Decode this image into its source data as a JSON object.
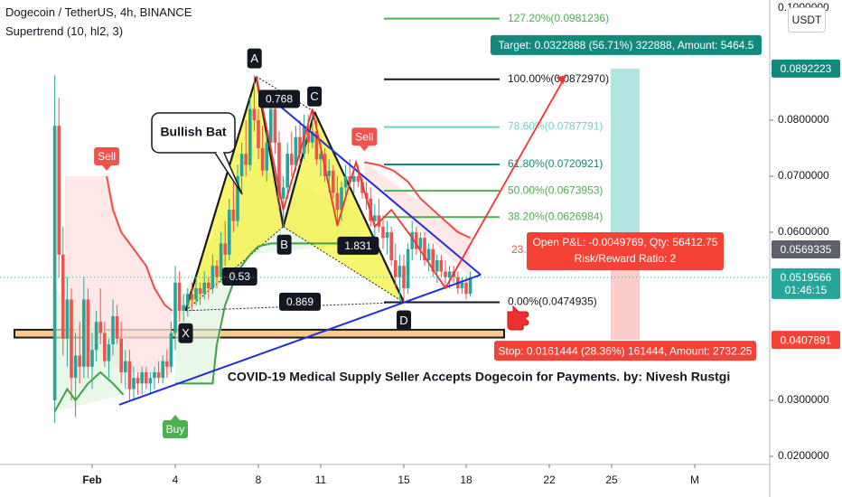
{
  "header": {
    "symbol_line": "Dogecoin / TetherUS, 4h, BINANCE",
    "indicator_line": "Supertrend (10, hl2, 3)"
  },
  "currency_button": "USDT",
  "colors": {
    "up": "#26a69a",
    "down": "#ef5350",
    "pattern_fill": "#f5f23d",
    "trendline": "#1f2fdc",
    "pattern_line": "#1a1a1a",
    "fib_green": "#4caf50",
    "fib_teal": "#6dd3c7",
    "target_bg": "#13897e",
    "stop_bg": "#f44336"
  },
  "chart_data": {
    "type": "candlestick",
    "title": "Dogecoin / TetherUS, 4h, BINANCE",
    "x_ticks": [
      "Feb",
      "4",
      "8",
      "11",
      "15",
      "18",
      "22",
      "25",
      "M"
    ],
    "y_ticks": [
      "0.0800000",
      "0.0700000",
      "0.0600000",
      "0.0300000",
      "0.0200000"
    ],
    "y_top_tick_partial": "0.1000000",
    "ylim": [
      0.019,
      0.101
    ],
    "price_tags": [
      {
        "text": "0.0892223",
        "value": 0.0892223,
        "kind": "target"
      },
      {
        "text": "0.0569335",
        "value": 0.0569335,
        "kind": "gray"
      },
      {
        "text": "0.0519566",
        "value": 0.0519566,
        "kind": "last"
      },
      {
        "text": "01:46:15",
        "value": 0.0497,
        "kind": "countdown"
      },
      {
        "text": "0.0407891",
        "value": 0.0407891,
        "kind": "stop"
      }
    ],
    "fib_levels": [
      {
        "label": "127.20%(0.0981236)",
        "value": 0.0981236,
        "color": "#4caf50"
      },
      {
        "label": "100.00%(0.0872970)",
        "value": 0.087297,
        "color": "#131722"
      },
      {
        "label": "78.60%(0.0787791)",
        "value": 0.0787791,
        "color": "#6dd3c7"
      },
      {
        "label": "61.80%(0.0720921)",
        "value": 0.0720921,
        "color": "#13897e"
      },
      {
        "label": "50.00%(0.0673953)",
        "value": 0.0673953,
        "color": "#4caf50"
      },
      {
        "label": "38.20%(0.0626984)",
        "value": 0.0626984,
        "color": "#4caf50"
      },
      {
        "label": "23.",
        "value": 0.0568,
        "color": "#ef5350"
      },
      {
        "label": "0.00%(0.0474935)",
        "value": 0.0474935,
        "color": "#131722"
      }
    ],
    "pattern": {
      "name": "Bullish Bat",
      "points": [
        {
          "label": "X",
          "x": 4.5,
          "y": 0.046
        },
        {
          "label": "A",
          "x": 7.9,
          "y": 0.0878
        },
        {
          "label": "B",
          "x": 9.2,
          "y": 0.061
        },
        {
          "label": "C",
          "x": 10.7,
          "y": 0.0815
        },
        {
          "label": "D",
          "x": 15.0,
          "y": 0.0475
        }
      ],
      "ratios": [
        "0.768",
        "0.53",
        "1.831",
        "0.869"
      ]
    },
    "signals": [
      {
        "label": "Sell",
        "x": 0.7,
        "y": 0.07
      },
      {
        "label": "Buy",
        "x": 4.0,
        "y": 0.03
      },
      {
        "label": "Sell",
        "x": 13.1,
        "y": 0.0735
      }
    ],
    "position": {
      "target_text": "Target: 0.0322888 (56.71%) 322888, Amount: 5464.5",
      "pnl_text": "Open P&L: -0.0049769, Qty: 56412.75",
      "rr_text": "Risk/Reward Ratio: 2",
      "stop_text": "Stop: 0.0161444 (28.36%) 161444, Amount: 2732.25",
      "entry": 0.0569335,
      "target": 0.0892223,
      "stop": 0.0407891
    },
    "annotation": "COVID-19 Medical Supply Seller Accepts Dogecoin for Payments. by: Nivesh Rustgi",
    "support_zone": [
      0.0426,
      0.0412
    ],
    "candles": [
      [
        -1.8,
        0.03,
        0.088,
        0.026,
        0.079
      ],
      [
        -1.6,
        0.079,
        0.084,
        0.052,
        0.056
      ],
      [
        -1.4,
        0.056,
        0.061,
        0.038,
        0.041
      ],
      [
        -1.2,
        0.041,
        0.052,
        0.036,
        0.048
      ],
      [
        -1.0,
        0.048,
        0.05,
        0.03,
        0.034
      ],
      [
        -0.8,
        0.034,
        0.042,
        0.027,
        0.038
      ],
      [
        -0.6,
        0.038,
        0.044,
        0.033,
        0.036
      ],
      [
        -0.4,
        0.036,
        0.052,
        0.034,
        0.048
      ],
      [
        -0.2,
        0.048,
        0.05,
        0.034,
        0.036
      ],
      [
        0.0,
        0.036,
        0.042,
        0.032,
        0.039
      ],
      [
        0.2,
        0.039,
        0.046,
        0.037,
        0.044
      ],
      [
        0.4,
        0.044,
        0.05,
        0.04,
        0.042
      ],
      [
        0.6,
        0.042,
        0.044,
        0.036,
        0.037
      ],
      [
        0.8,
        0.037,
        0.041,
        0.034,
        0.04
      ],
      [
        1.0,
        0.04,
        0.048,
        0.038,
        0.045
      ],
      [
        1.2,
        0.045,
        0.047,
        0.04,
        0.041
      ],
      [
        1.4,
        0.041,
        0.044,
        0.033,
        0.035
      ],
      [
        1.6,
        0.035,
        0.039,
        0.032,
        0.037
      ],
      [
        1.8,
        0.037,
        0.039,
        0.03,
        0.032
      ],
      [
        2.0,
        0.032,
        0.036,
        0.03,
        0.034
      ],
      [
        2.2,
        0.034,
        0.035,
        0.031,
        0.033
      ],
      [
        2.4,
        0.033,
        0.036,
        0.031,
        0.035
      ],
      [
        2.6,
        0.035,
        0.036,
        0.032,
        0.033
      ],
      [
        2.8,
        0.033,
        0.035,
        0.031,
        0.034
      ],
      [
        3.0,
        0.034,
        0.036,
        0.032,
        0.035
      ],
      [
        3.2,
        0.035,
        0.037,
        0.033,
        0.034
      ],
      [
        3.4,
        0.034,
        0.038,
        0.033,
        0.037
      ],
      [
        3.6,
        0.037,
        0.039,
        0.034,
        0.036
      ],
      [
        3.8,
        0.036,
        0.044,
        0.035,
        0.042
      ],
      [
        4.0,
        0.042,
        0.054,
        0.039,
        0.051
      ],
      [
        4.2,
        0.051,
        0.053,
        0.044,
        0.046
      ],
      [
        4.4,
        0.046,
        0.049,
        0.044,
        0.047
      ],
      [
        4.6,
        0.047,
        0.05,
        0.045,
        0.049
      ],
      [
        4.8,
        0.049,
        0.051,
        0.046,
        0.048
      ],
      [
        5.0,
        0.048,
        0.052,
        0.047,
        0.05
      ],
      [
        5.2,
        0.05,
        0.051,
        0.047,
        0.049
      ],
      [
        5.4,
        0.049,
        0.053,
        0.048,
        0.051
      ],
      [
        5.6,
        0.051,
        0.052,
        0.048,
        0.05
      ],
      [
        5.8,
        0.05,
        0.056,
        0.049,
        0.054
      ],
      [
        6.0,
        0.054,
        0.055,
        0.05,
        0.052
      ],
      [
        6.2,
        0.052,
        0.06,
        0.051,
        0.058
      ],
      [
        6.4,
        0.058,
        0.062,
        0.054,
        0.056
      ],
      [
        6.6,
        0.056,
        0.066,
        0.055,
        0.064
      ],
      [
        6.8,
        0.064,
        0.069,
        0.06,
        0.062
      ],
      [
        7.0,
        0.062,
        0.072,
        0.061,
        0.07
      ],
      [
        7.2,
        0.07,
        0.076,
        0.067,
        0.074
      ],
      [
        7.4,
        0.074,
        0.08,
        0.07,
        0.072
      ],
      [
        7.6,
        0.072,
        0.084,
        0.071,
        0.082
      ],
      [
        7.8,
        0.082,
        0.088,
        0.078,
        0.08
      ],
      [
        8.0,
        0.08,
        0.082,
        0.073,
        0.075
      ],
      [
        8.2,
        0.075,
        0.079,
        0.07,
        0.071
      ],
      [
        8.4,
        0.071,
        0.078,
        0.069,
        0.076
      ],
      [
        8.6,
        0.076,
        0.084,
        0.074,
        0.082
      ],
      [
        8.8,
        0.082,
        0.083,
        0.074,
        0.076
      ],
      [
        9.0,
        0.076,
        0.078,
        0.064,
        0.066
      ],
      [
        9.2,
        0.066,
        0.07,
        0.061,
        0.068
      ],
      [
        9.4,
        0.068,
        0.076,
        0.066,
        0.074
      ],
      [
        9.6,
        0.074,
        0.078,
        0.07,
        0.072
      ],
      [
        9.8,
        0.072,
        0.079,
        0.071,
        0.077
      ],
      [
        10.0,
        0.077,
        0.08,
        0.072,
        0.074
      ],
      [
        10.2,
        0.074,
        0.081,
        0.073,
        0.079
      ],
      [
        10.4,
        0.079,
        0.081,
        0.074,
        0.076
      ],
      [
        10.6,
        0.076,
        0.082,
        0.075,
        0.078
      ],
      [
        10.8,
        0.078,
        0.08,
        0.072,
        0.073
      ],
      [
        11.0,
        0.073,
        0.076,
        0.07,
        0.074
      ],
      [
        11.2,
        0.074,
        0.075,
        0.069,
        0.07
      ],
      [
        11.4,
        0.07,
        0.073,
        0.067,
        0.071
      ],
      [
        11.6,
        0.071,
        0.072,
        0.066,
        0.067
      ],
      [
        11.8,
        0.067,
        0.07,
        0.061,
        0.064
      ],
      [
        12.0,
        0.064,
        0.069,
        0.062,
        0.068
      ],
      [
        12.2,
        0.068,
        0.072,
        0.066,
        0.07
      ],
      [
        12.4,
        0.07,
        0.073,
        0.068,
        0.069
      ],
      [
        12.6,
        0.069,
        0.071,
        0.067,
        0.07
      ],
      [
        12.8,
        0.07,
        0.072,
        0.068,
        0.069
      ],
      [
        13.0,
        0.069,
        0.07,
        0.066,
        0.067
      ],
      [
        13.2,
        0.067,
        0.069,
        0.064,
        0.066
      ],
      [
        13.4,
        0.066,
        0.068,
        0.061,
        0.062
      ],
      [
        13.6,
        0.062,
        0.065,
        0.059,
        0.063
      ],
      [
        13.8,
        0.063,
        0.066,
        0.06,
        0.061
      ],
      [
        14.0,
        0.061,
        0.063,
        0.057,
        0.059
      ],
      [
        14.2,
        0.059,
        0.062,
        0.056,
        0.06
      ],
      [
        14.4,
        0.06,
        0.061,
        0.054,
        0.055
      ],
      [
        14.6,
        0.055,
        0.058,
        0.05,
        0.052
      ],
      [
        14.8,
        0.052,
        0.056,
        0.048,
        0.054
      ],
      [
        15.0,
        0.054,
        0.056,
        0.0475,
        0.05
      ],
      [
        15.2,
        0.05,
        0.058,
        0.049,
        0.057
      ],
      [
        15.4,
        0.057,
        0.062,
        0.055,
        0.06
      ],
      [
        15.6,
        0.06,
        0.061,
        0.056,
        0.057
      ],
      [
        15.8,
        0.057,
        0.06,
        0.055,
        0.059
      ],
      [
        16.0,
        0.059,
        0.06,
        0.054,
        0.055
      ],
      [
        16.2,
        0.055,
        0.058,
        0.053,
        0.057
      ],
      [
        16.4,
        0.057,
        0.058,
        0.052,
        0.053
      ],
      [
        16.6,
        0.053,
        0.056,
        0.051,
        0.055
      ],
      [
        16.8,
        0.055,
        0.056,
        0.052,
        0.053
      ],
      [
        17.0,
        0.053,
        0.055,
        0.05,
        0.052
      ],
      [
        17.2,
        0.052,
        0.054,
        0.05,
        0.053
      ],
      [
        17.4,
        0.053,
        0.054,
        0.051,
        0.052
      ],
      [
        17.6,
        0.052,
        0.053,
        0.049,
        0.05
      ],
      [
        17.8,
        0.05,
        0.052,
        0.049,
        0.051
      ],
      [
        18.0,
        0.051,
        0.052,
        0.048,
        0.049
      ],
      [
        18.2,
        0.049,
        0.053,
        0.0485,
        0.052
      ]
    ],
    "supertrend_red": [
      [
        0.7,
        0.07
      ],
      [
        1.0,
        0.064
      ],
      [
        1.4,
        0.06
      ],
      [
        2.0,
        0.057
      ],
      [
        2.6,
        0.054
      ],
      [
        3.0,
        0.05
      ],
      [
        3.5,
        0.047
      ],
      [
        3.85,
        0.046
      ]
    ],
    "supertrend_green": [
      [
        -1.8,
        0.028
      ],
      [
        -1.2,
        0.032
      ],
      [
        -0.8,
        0.03
      ],
      [
        -0.2,
        0.033
      ],
      [
        0.4,
        0.035
      ],
      [
        1.0,
        0.033
      ],
      [
        1.5,
        0.031
      ]
    ],
    "supertrend_green2": [
      [
        4.0,
        0.033
      ],
      [
        5.8,
        0.033
      ],
      [
        6.0,
        0.04
      ],
      [
        6.4,
        0.047
      ],
      [
        7.0,
        0.053
      ],
      [
        7.6,
        0.056
      ],
      [
        8.0,
        0.0575
      ],
      [
        8.6,
        0.058
      ],
      [
        12.5,
        0.058
      ],
      [
        12.9,
        0.058
      ]
    ],
    "supertrend_red2": [
      [
        13.1,
        0.0725
      ],
      [
        13.8,
        0.072
      ],
      [
        14.5,
        0.071
      ],
      [
        15.2,
        0.069
      ],
      [
        15.8,
        0.066
      ],
      [
        16.4,
        0.064
      ],
      [
        17.0,
        0.062
      ],
      [
        17.6,
        0.06
      ],
      [
        18.2,
        0.059
      ]
    ]
  }
}
